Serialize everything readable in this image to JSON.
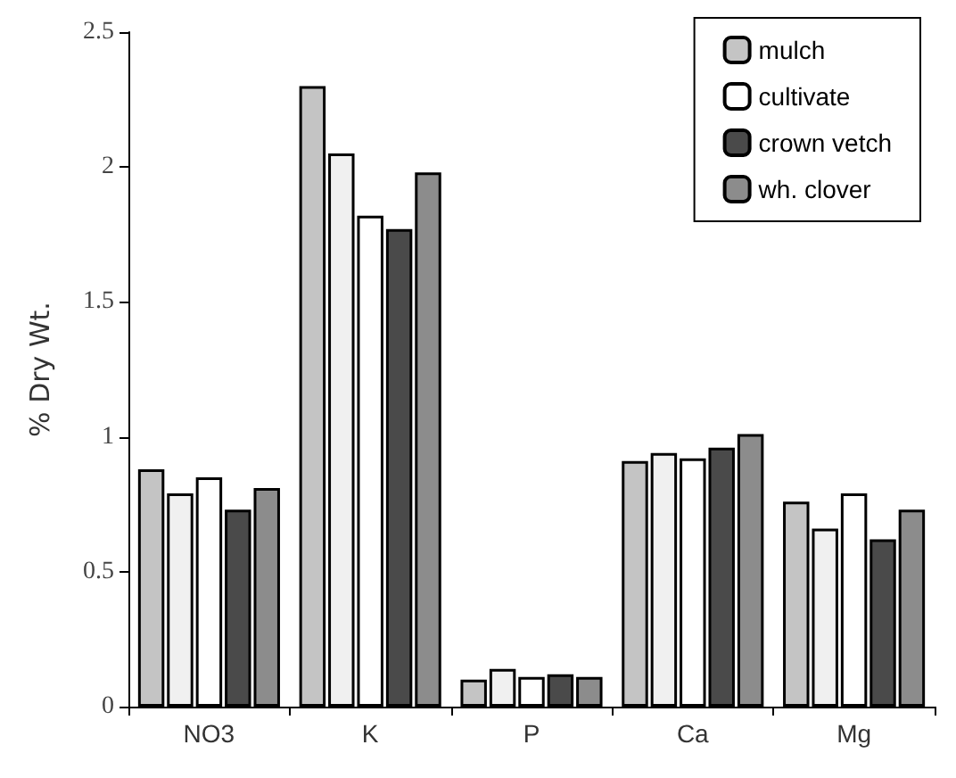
{
  "chart_data": {
    "type": "bar",
    "ylabel": "% Dry Wt.",
    "categories": [
      "NO3",
      "K",
      "P",
      "Ca",
      "Mg"
    ],
    "series": [
      {
        "name": "mulch",
        "color": "#c4c4c4",
        "values": [
          0.88,
          2.3,
          0.1,
          0.91,
          0.76
        ]
      },
      {
        "color": "#f0f0f0",
        "values": [
          0.79,
          2.05,
          0.14,
          0.94,
          0.66
        ]
      },
      {
        "name": "cultivate",
        "color": "#ffffff",
        "values": [
          0.85,
          1.82,
          0.11,
          0.92,
          0.79
        ]
      },
      {
        "name": "crown vetch",
        "color": "#4a4a4a",
        "values": [
          0.73,
          1.77,
          0.12,
          0.96,
          0.62
        ]
      },
      {
        "name": "wh. clover",
        "color": "#8c8c8c",
        "values": [
          0.81,
          1.98,
          0.11,
          1.01,
          0.73
        ]
      }
    ],
    "ylim": [
      0,
      2.5
    ],
    "yticks": [
      0,
      0.5,
      1,
      1.5,
      2,
      2.5
    ],
    "grid": false,
    "legend": "top right"
  }
}
